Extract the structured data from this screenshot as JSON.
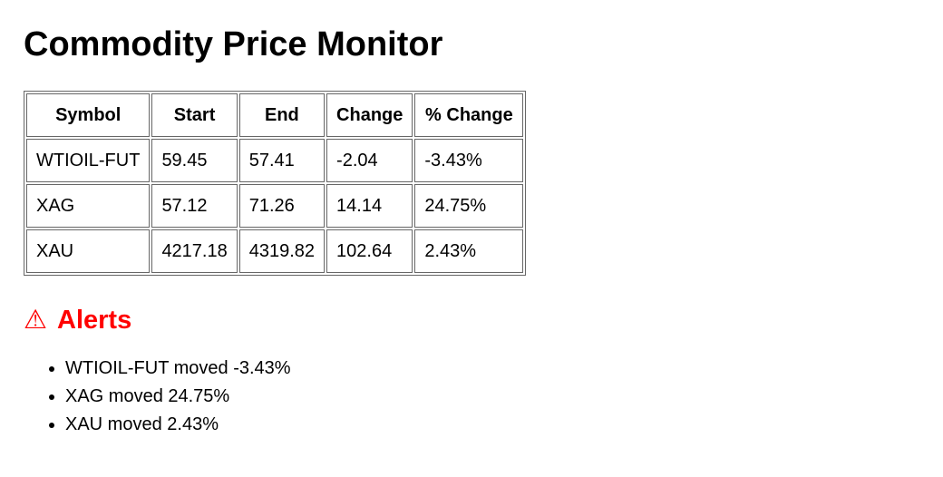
{
  "page": {
    "title": "Commodity Price Monitor"
  },
  "table": {
    "columns": [
      "Symbol",
      "Start",
      "End",
      "Change",
      "% Change"
    ],
    "rows": [
      {
        "symbol": "WTIOIL-FUT",
        "start": "59.45",
        "end": "57.41",
        "change": "-2.04",
        "pct_change": "-3.43%"
      },
      {
        "symbol": "XAG",
        "start": "57.12",
        "end": "71.26",
        "change": "14.14",
        "pct_change": "24.75%"
      },
      {
        "symbol": "XAU",
        "start": "4217.18",
        "end": "4319.82",
        "change": "102.64",
        "pct_change": "2.43%"
      }
    ]
  },
  "alerts": {
    "icon": "⚠",
    "title": "Alerts",
    "color": "#ff0000",
    "items": [
      "WTIOIL-FUT moved -3.43%",
      "XAG moved 24.75%",
      "XAU moved 2.43%"
    ]
  },
  "colors": {
    "table_border": "#676767",
    "text": "#000000",
    "alert_accent": "#ff0000"
  }
}
